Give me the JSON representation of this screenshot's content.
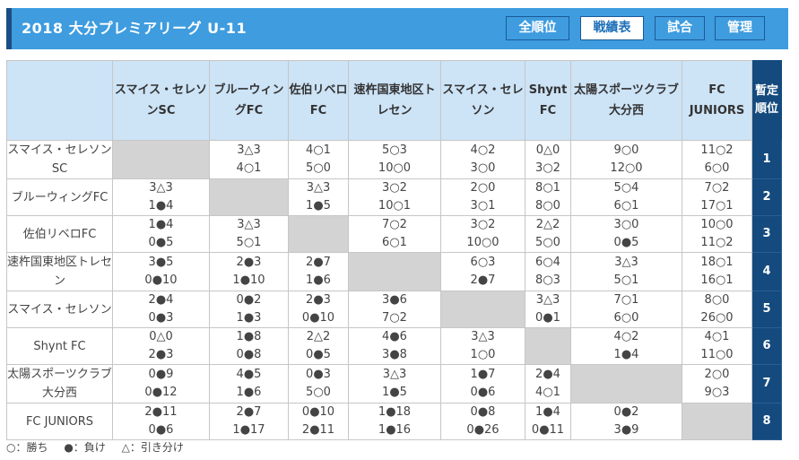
{
  "header": {
    "title": "2018 大分プレミアリーグ U-11",
    "nav": [
      {
        "label": "全順位",
        "active": false
      },
      {
        "label": "戦績表",
        "active": true
      },
      {
        "label": "試合",
        "active": false
      },
      {
        "label": "管理",
        "active": false
      }
    ]
  },
  "table": {
    "column_headers": [
      "スマイス・セレソンSC",
      "ブルーウィングFC",
      "佐伯リベロFC",
      "速杵国東地区トレセン",
      "スマイス・セレソン",
      "Shynt FC",
      "太陽スポーツクラブ大分西",
      "FC JUNIORS"
    ],
    "rank_header": "暫定順位",
    "rows": [
      {
        "team": "スマイス・セレソンSC",
        "rank": "1",
        "results": [
          null,
          [
            "3△3",
            "4○1"
          ],
          [
            "4○1",
            "5○0"
          ],
          [
            "5○3",
            "10○0"
          ],
          [
            "4○2",
            "3○0"
          ],
          [
            "0△0",
            "3○2"
          ],
          [
            "9○0",
            "12○0"
          ],
          [
            "11○2",
            "6○0"
          ]
        ]
      },
      {
        "team": "ブルーウィングFC",
        "rank": "2",
        "results": [
          [
            "3△3",
            "1●4"
          ],
          null,
          [
            "3△3",
            "1●5"
          ],
          [
            "3○2",
            "10○1"
          ],
          [
            "2○0",
            "3○1"
          ],
          [
            "8○1",
            "8○0"
          ],
          [
            "5○4",
            "6○1"
          ],
          [
            "7○2",
            "17○1"
          ]
        ]
      },
      {
        "team": "佐伯リベロFC",
        "rank": "3",
        "results": [
          [
            "1●4",
            "0●5"
          ],
          [
            "3△3",
            "5○1"
          ],
          null,
          [
            "7○2",
            "6○1"
          ],
          [
            "3○2",
            "10○0"
          ],
          [
            "2△2",
            "5○0"
          ],
          [
            "3○0",
            "0●5"
          ],
          [
            "10○0",
            "11○2"
          ]
        ]
      },
      {
        "team": "速杵国東地区トレセン",
        "rank": "4",
        "results": [
          [
            "3●5",
            "0●10"
          ],
          [
            "2●3",
            "1●10"
          ],
          [
            "2●7",
            "1●6"
          ],
          null,
          [
            "6○3",
            "2●7"
          ],
          [
            "6○4",
            "8○3"
          ],
          [
            "3△3",
            "5○1"
          ],
          [
            "18○1",
            "16○1"
          ]
        ]
      },
      {
        "team": "スマイス・セレソン",
        "rank": "5",
        "results": [
          [
            "2●4",
            "0●3"
          ],
          [
            "0●2",
            "1●3"
          ],
          [
            "2●3",
            "0●10"
          ],
          [
            "3●6",
            "7○2"
          ],
          null,
          [
            "3△3",
            "0●1"
          ],
          [
            "7○1",
            "6○0"
          ],
          [
            "8○0",
            "26○0"
          ]
        ]
      },
      {
        "team": "Shynt FC",
        "rank": "6",
        "results": [
          [
            "0△0",
            "2●3"
          ],
          [
            "1●8",
            "0●8"
          ],
          [
            "2△2",
            "0●5"
          ],
          [
            "4●6",
            "3●8"
          ],
          [
            "3△3",
            "1○0"
          ],
          null,
          [
            "4○2",
            "1●4"
          ],
          [
            "4○1",
            "11○0"
          ]
        ]
      },
      {
        "team": "太陽スポーツクラブ大分西",
        "rank": "7",
        "results": [
          [
            "0●9",
            "0●12"
          ],
          [
            "4●5",
            "1●6"
          ],
          [
            "0●3",
            "5○0"
          ],
          [
            "3△3",
            "1●5"
          ],
          [
            "1●7",
            "0●6"
          ],
          [
            "2●4",
            "4○1"
          ],
          null,
          [
            "2○0",
            "9○3"
          ]
        ]
      },
      {
        "team": "FC JUNIORS",
        "rank": "8",
        "results": [
          [
            "2●11",
            "0●6"
          ],
          [
            "2●7",
            "1●17"
          ],
          [
            "0●10",
            "2●11"
          ],
          [
            "1●18",
            "1●16"
          ],
          [
            "0●8",
            "0●26"
          ],
          [
            "1●4",
            "0●11"
          ],
          [
            "0●2",
            "3●9"
          ],
          null
        ]
      }
    ]
  },
  "legend": {
    "win": "○：勝ち",
    "loss": "●：負け",
    "draw": "△：引き分け"
  },
  "colors": {
    "header_bg": "#3e9cdf",
    "header_accent": "#1c4d82",
    "rank_bg": "#144a7e",
    "column_header_bg": "#cde3f6",
    "self_cell": "#d3d3d3"
  }
}
